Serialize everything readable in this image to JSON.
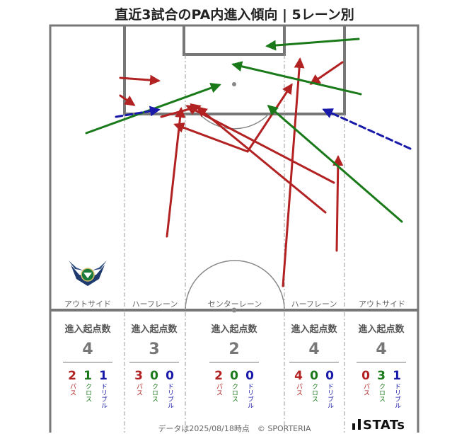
{
  "title": "直近3試合のPA内進入傾向 | 5レーン別",
  "lanes": [
    {
      "label": "アウトサイド",
      "header": "進入起点数",
      "total": "4",
      "pass": "2",
      "cross": "1",
      "dribble": "1"
    },
    {
      "label": "ハーフレーン",
      "header": "進入起点数",
      "total": "3",
      "pass": "3",
      "cross": "0",
      "dribble": "0"
    },
    {
      "label": "センターレーン",
      "header": "進入起点数",
      "total": "2",
      "pass": "2",
      "cross": "0",
      "dribble": "0"
    },
    {
      "label": "ハーフレーン",
      "header": "進入起点数",
      "total": "4",
      "pass": "4",
      "cross": "0",
      "dribble": "0"
    },
    {
      "label": "アウトサイド",
      "header": "進入起点数",
      "total": "4",
      "pass": "0",
      "cross": "3",
      "dribble": "1"
    }
  ],
  "type_labels": {
    "pass": "パス",
    "cross": "クロス",
    "dribble": "ドリブル"
  },
  "colors": {
    "pass": "#b22222",
    "cross": "#1a7a1a",
    "dribble": "#1a1aaa",
    "lines": "#777777"
  },
  "footer": "データは2025/08/18時点　© SPORTERIA",
  "logo": "STATs",
  "chart_data": {
    "type": "arrow-map",
    "entries": [
      {
        "type": "pass",
        "from": [
          170,
          110
        ],
        "to": [
          224,
          114
        ]
      },
      {
        "type": "pass",
        "from": [
          170,
          135
        ],
        "to": [
          189,
          148
        ]
      },
      {
        "type": "pass",
        "from": [
          236,
          334
        ],
        "to": [
          256,
          154
        ]
      },
      {
        "type": "pass",
        "from": [
          228,
          165
        ],
        "to": [
          282,
          150
        ]
      },
      {
        "type": "pass",
        "from": [
          472,
          258
        ],
        "to": [
          265,
          150
        ]
      },
      {
        "type": "pass",
        "from": [
          460,
          300
        ],
        "to": [
          280,
          152
        ]
      },
      {
        "type": "pass",
        "from": [
          350,
          214
        ],
        "to": [
          412,
          120
        ]
      },
      {
        "type": "pass",
        "from": [
          350,
          214
        ],
        "to": [
          248,
          176
        ]
      },
      {
        "type": "pass",
        "from": [
          484,
          88
        ],
        "to": [
          440,
          118
        ]
      },
      {
        "type": "pass",
        "from": [
          400,
          404
        ],
        "to": [
          424,
          84
        ]
      },
      {
        "type": "pass",
        "from": [
          476,
          354
        ],
        "to": [
          478,
          222
        ]
      },
      {
        "type": "cross",
        "from": [
          122,
          188
        ],
        "to": [
          310,
          120
        ]
      },
      {
        "type": "cross",
        "from": [
          507,
          55
        ],
        "to": [
          378,
          65
        ]
      },
      {
        "type": "cross",
        "from": [
          510,
          133
        ],
        "to": [
          330,
          91
        ]
      },
      {
        "type": "cross",
        "from": [
          568,
          313
        ],
        "to": [
          380,
          150
        ]
      },
      {
        "type": "dribble",
        "from": [
          164,
          165
        ],
        "to": [
          224,
          155
        ]
      },
      {
        "type": "dribble",
        "from": [
          580,
          210
        ],
        "to": [
          458,
          155
        ]
      }
    ]
  }
}
